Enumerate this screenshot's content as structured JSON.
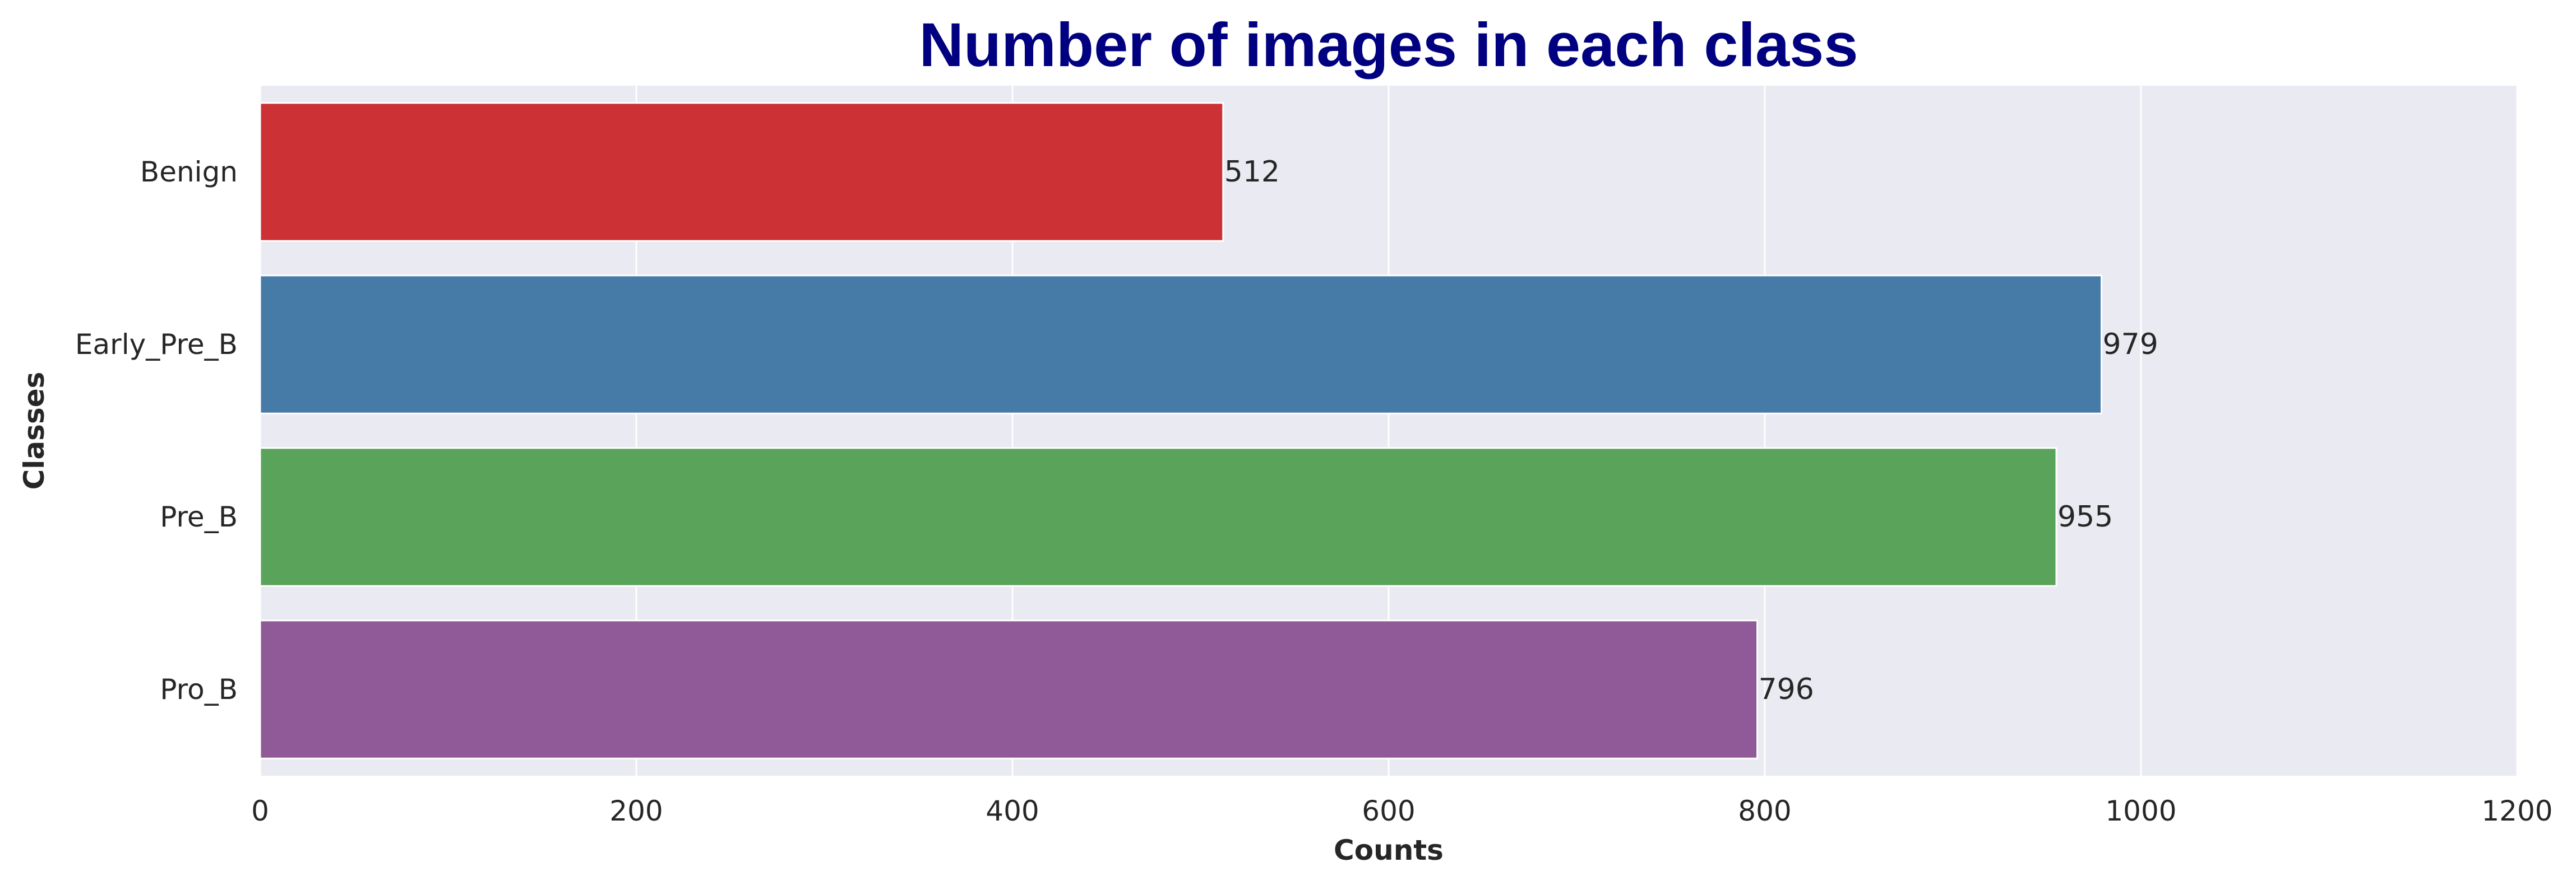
{
  "chart_data": {
    "type": "bar",
    "orientation": "horizontal",
    "title": "Number of images in each class",
    "xlabel": "Counts",
    "ylabel": "Classes",
    "categories": [
      "Benign",
      "Early_Pre_B",
      "Pre_B",
      "Pro_B"
    ],
    "values": [
      512,
      979,
      955,
      796
    ],
    "value_labels": [
      "512",
      "979",
      "955",
      "796"
    ],
    "xlim": [
      0,
      1200
    ],
    "xticks": [
      0,
      200,
      400,
      600,
      800,
      1000,
      1200
    ],
    "xtick_labels": [
      "0",
      "200",
      "400",
      "600",
      "800",
      "1000",
      "1200"
    ],
    "grid": true,
    "legend": "none",
    "colors": {
      "bars": [
        "#cc3235",
        "#467ba8",
        "#5aa35a",
        "#8f5a97"
      ],
      "title": "#000080",
      "plot_background": "#eaeaf2",
      "grid": "#ffffff"
    }
  }
}
